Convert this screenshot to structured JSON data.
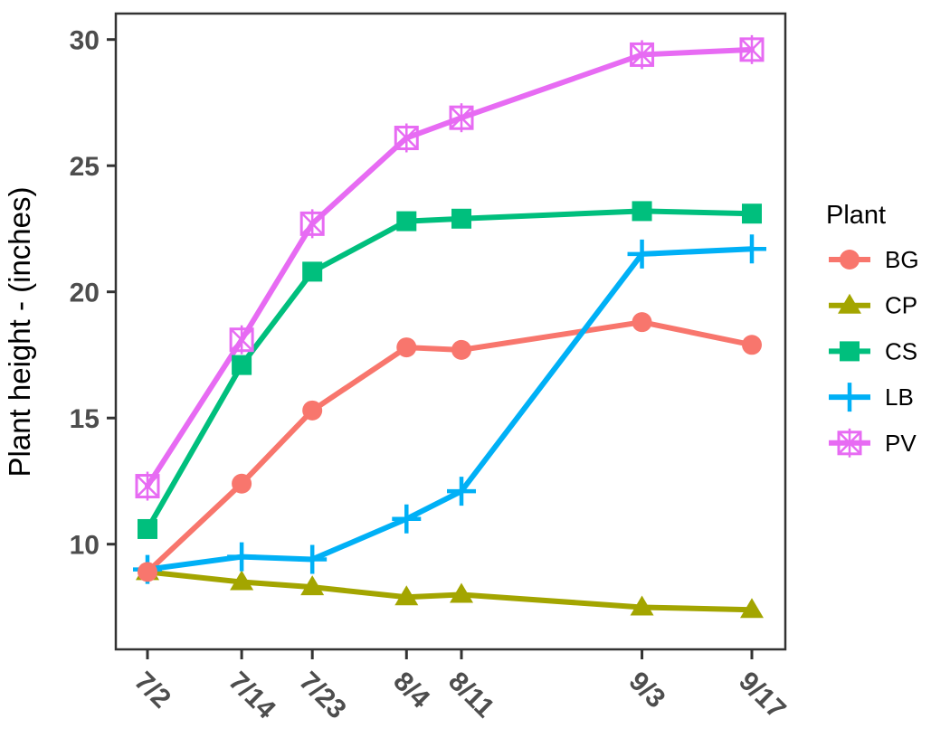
{
  "chart_data": {
    "type": "line",
    "title": "",
    "xlabel": "",
    "ylabel": "Plant height - (inches)",
    "x_tick_labels": [
      "7/2",
      "7/14",
      "7/23",
      "8/4",
      "8/11",
      "9/3",
      "9/17"
    ],
    "x_days_since_start": [
      0,
      12,
      21,
      33,
      40,
      63,
      77
    ],
    "y_ticks": [
      10,
      15,
      20,
      25,
      30
    ],
    "ylim": [
      5.8,
      31.0
    ],
    "grid": false,
    "legend_position": "right",
    "legend_title": "Plant",
    "series": [
      {
        "name": "BG",
        "color": "#F8766D",
        "marker": "circle",
        "values": [
          8.9,
          12.4,
          15.3,
          17.8,
          17.7,
          18.8,
          17.9
        ]
      },
      {
        "name": "CP",
        "color": "#A3A500",
        "marker": "triangle",
        "values": [
          8.9,
          8.5,
          8.3,
          7.9,
          8.0,
          7.5,
          7.4
        ]
      },
      {
        "name": "CS",
        "color": "#00BF7D",
        "marker": "square",
        "values": [
          10.6,
          17.1,
          20.8,
          22.8,
          22.9,
          23.2,
          23.1
        ]
      },
      {
        "name": "LB",
        "color": "#00B0F6",
        "marker": "plus",
        "values": [
          9.0,
          9.5,
          9.4,
          11.0,
          12.1,
          21.5,
          21.7
        ]
      },
      {
        "name": "PV",
        "color": "#E76BF3",
        "marker": "square-x",
        "values": [
          12.3,
          18.1,
          22.7,
          26.1,
          26.9,
          29.4,
          29.6
        ]
      }
    ],
    "style": {
      "axis_text_color": "#4d4d4d",
      "axis_title_color": "#000000",
      "panel_border_color": "#333333",
      "background_color": "#ffffff"
    }
  }
}
